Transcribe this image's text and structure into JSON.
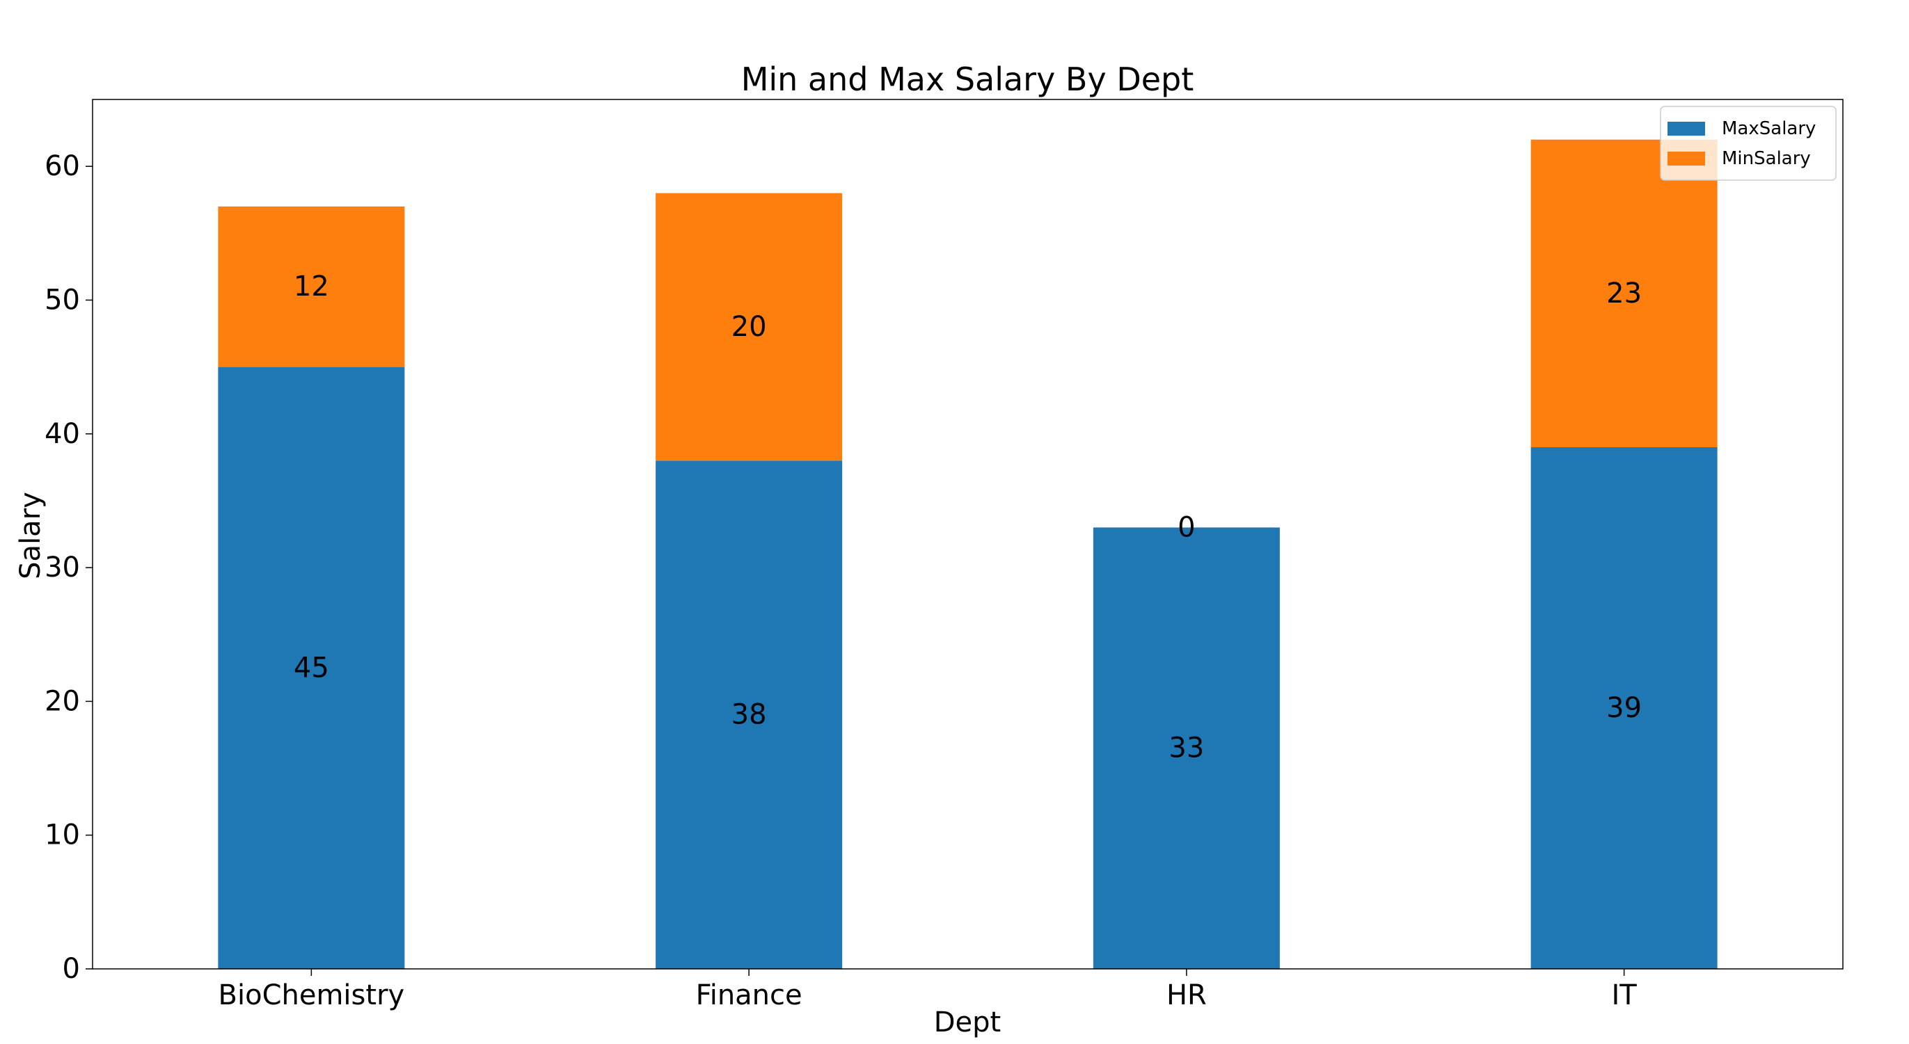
{
  "chart_data": {
    "type": "bar",
    "stacked": true,
    "title": "Min and Max Salary By Dept",
    "xlabel": "Dept",
    "ylabel": "Salary",
    "categories": [
      "BioChemistry",
      "Finance",
      "HR",
      "IT"
    ],
    "series": [
      {
        "name": "MaxSalary",
        "values": [
          45,
          38,
          33,
          39
        ],
        "color": "#1f77b4"
      },
      {
        "name": "MinSalary",
        "values": [
          12,
          20,
          0,
          23
        ],
        "color": "#ff7f0e"
      }
    ],
    "ylim": [
      0,
      65
    ],
    "yticks": [
      0,
      10,
      20,
      30,
      40,
      50,
      60
    ],
    "grid": false,
    "legend_position": "top-right"
  }
}
